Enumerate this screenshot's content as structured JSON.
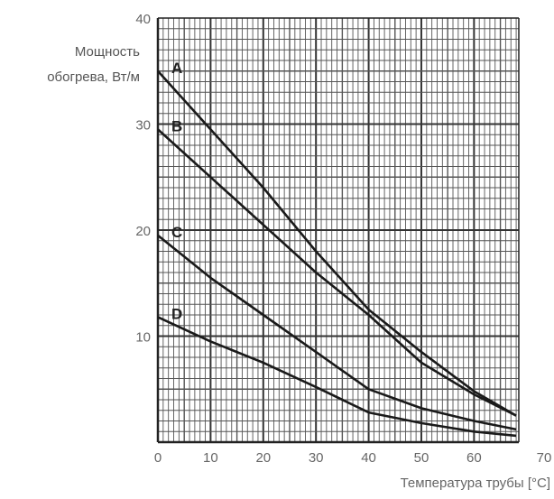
{
  "chart_data": {
    "type": "line",
    "title": "",
    "ylabel_lines": [
      "Мощность",
      "обогрева, Вт/м"
    ],
    "xlabel": "Температура трубы [°С]",
    "xlim": [
      0,
      70
    ],
    "ylim": [
      0,
      40
    ],
    "x_ticks": [
      0,
      10,
      20,
      30,
      40,
      50,
      60,
      70
    ],
    "y_ticks": [
      10,
      20,
      30,
      40
    ],
    "grid": true,
    "legend": "none",
    "series": [
      {
        "name": "A",
        "x": [
          0,
          10,
          20,
          30,
          40,
          50,
          60,
          68
        ],
        "y": [
          35,
          29.5,
          24,
          18,
          12.5,
          8.5,
          4.8,
          2.5
        ]
      },
      {
        "name": "B",
        "x": [
          0,
          10,
          20,
          30,
          40,
          50,
          60,
          68
        ],
        "y": [
          29.5,
          25,
          20.5,
          16,
          12,
          7.5,
          4.5,
          2.5
        ]
      },
      {
        "name": "C",
        "x": [
          0,
          10,
          20,
          30,
          40,
          50,
          60,
          68
        ],
        "y": [
          19.5,
          15.5,
          12,
          8.5,
          5,
          3.2,
          2,
          1.2
        ]
      },
      {
        "name": "D",
        "x": [
          0,
          10,
          20,
          30,
          40,
          50,
          60,
          68
        ],
        "y": [
          11.8,
          9.5,
          7.5,
          5.2,
          2.8,
          1.8,
          1,
          0.6
        ]
      }
    ]
  },
  "colors": {
    "axis": "#222222",
    "grid_major": "#333333",
    "grid_minor": "#555555",
    "line": "#1a1a1a",
    "text": "#555555"
  }
}
